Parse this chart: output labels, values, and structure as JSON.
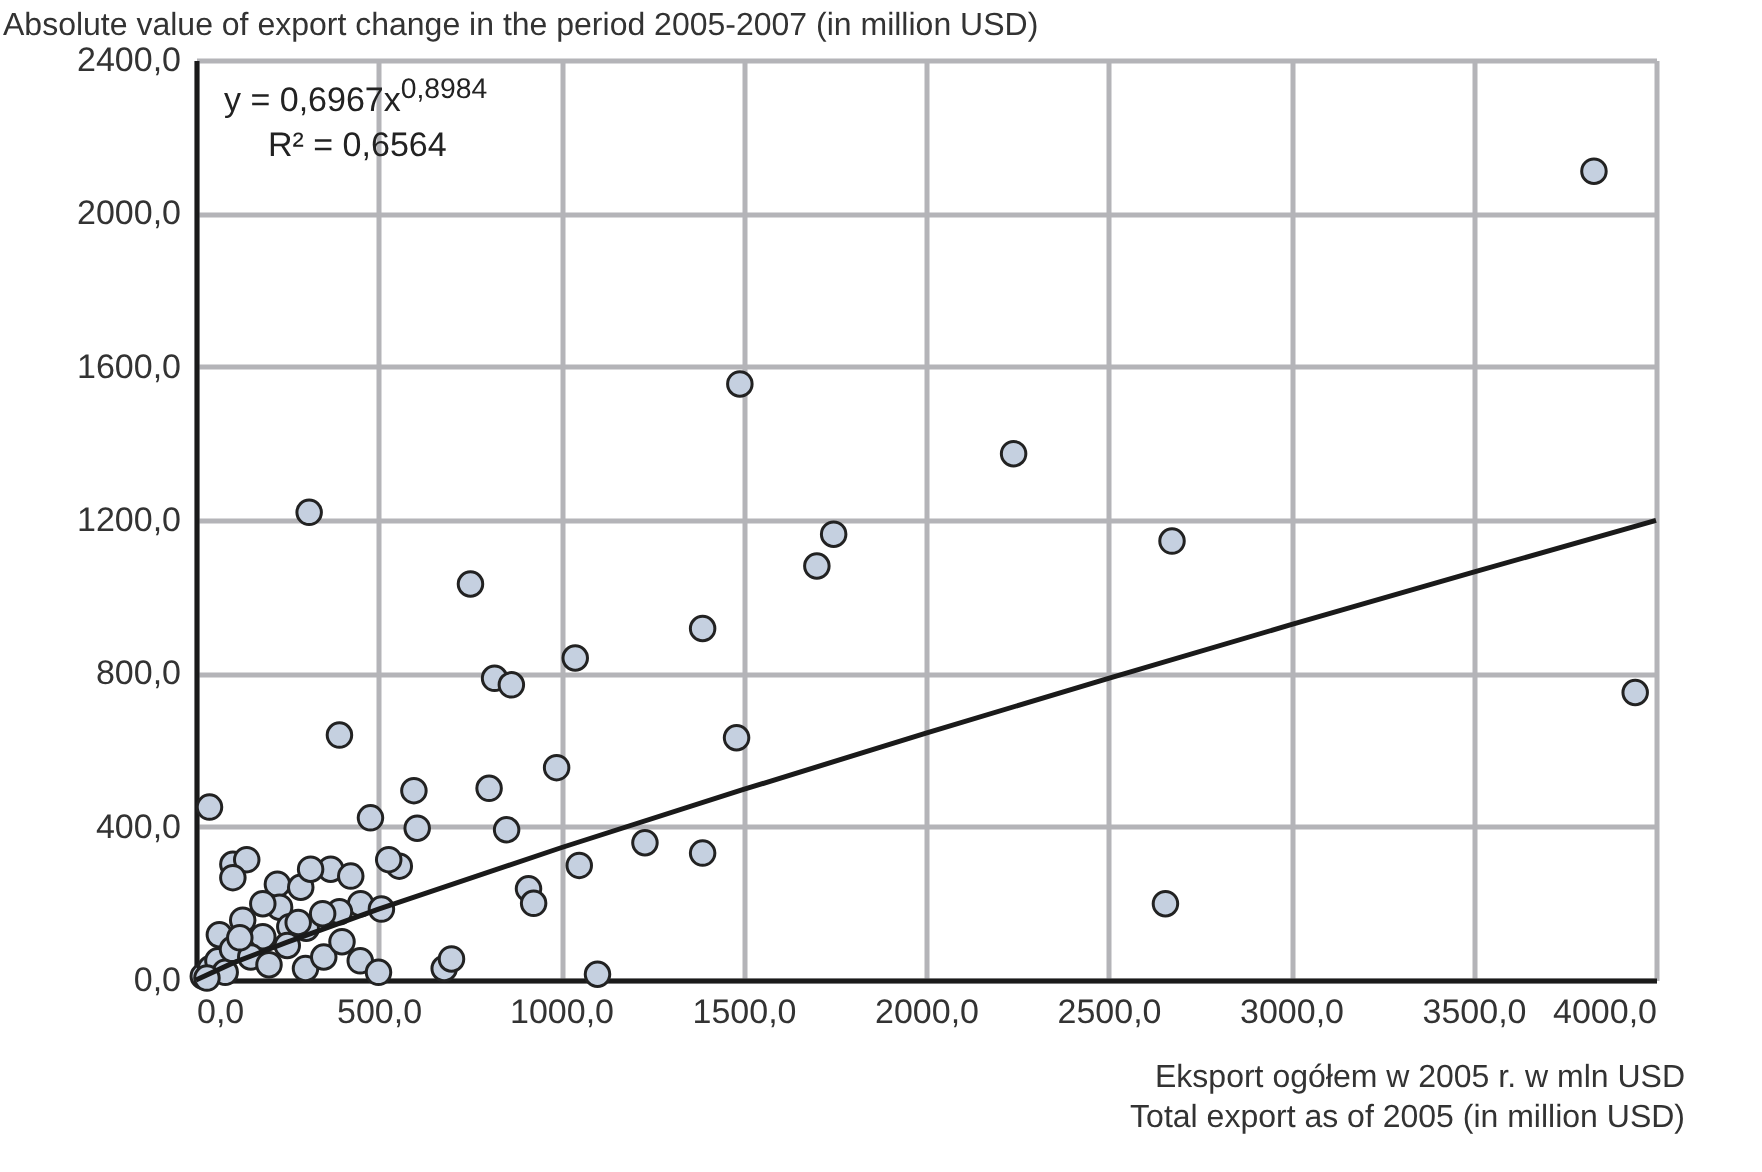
{
  "chart_data": {
    "type": "scatter",
    "ylabel": "Absolute value of export change in the period 2005-2007 (in million USD)",
    "xlabel": "Eksport ogółem w 2005 r. w mln USD\nTotal export as of 2005 (in million USD)",
    "xlim": [
      0,
      4000
    ],
    "ylim": [
      0,
      2400
    ],
    "xticks": [
      {
        "value": 0,
        "label": "0,0"
      },
      {
        "value": 500,
        "label": "500,0"
      },
      {
        "value": 1000,
        "label": "1000,0"
      },
      {
        "value": 1500,
        "label": "1500,0"
      },
      {
        "value": 2000,
        "label": "2000,0"
      },
      {
        "value": 2500,
        "label": "2500,0"
      },
      {
        "value": 3000,
        "label": "3000,0"
      },
      {
        "value": 3500,
        "label": "3500,0"
      },
      {
        "value": 4000,
        "label": "4000,0"
      }
    ],
    "yticks": [
      {
        "value": 0,
        "label": "0,0"
      },
      {
        "value": 400,
        "label": "400,0"
      },
      {
        "value": 800,
        "label": "800,0"
      },
      {
        "value": 1200,
        "label": "1200,0"
      },
      {
        "value": 1600,
        "label": "1600,0"
      },
      {
        "value": 2000,
        "label": "2000,0"
      },
      {
        "value": 2400,
        "label": "2400,0"
      }
    ],
    "grid": true,
    "annotations": [
      "y = 0,6967x$^{0,8984}$",
      "R² = 0,6564"
    ],
    "series": [
      {
        "color": "#c5d0e0",
        "marker": "circle",
        "x": [
          3830,
          3943,
          2240,
          1747,
          1701,
          2674,
          752,
          1388,
          1039,
          818,
          864,
          1481,
          988,
          597,
          803,
          606,
          851,
          557,
          1230,
          1388,
          1050,
          911,
          925,
          2656,
          393,
          37,
          478,
          528,
          101,
          139,
          101,
          223,
          287,
          369,
          424,
          314,
          451,
          508,
          393,
          229,
          183,
          128,
          257,
          302,
          347,
          64,
          183,
          310,
          1490,
          1100,
          680,
          700,
          20,
          40,
          60,
          80,
          100,
          150,
          200,
          250,
          300,
          350,
          400,
          450,
          500,
          120,
          280,
          30
        ],
        "values": [
          2110,
          750,
          1373,
          1163,
          1080,
          1145,
          1033,
          917,
          840,
          787,
          770,
          632,
          554,
          494,
          500,
          396,
          392,
          297,
          358,
          331,
          299,
          238,
          200,
          199,
          639,
          451,
          423,
          314,
          302,
          314,
          267,
          250,
          242,
          289,
          271,
          289,
          199,
          185,
          178,
          190,
          199,
          156,
          139,
          135,
          173,
          118,
          113,
          1220,
          1555,
          15,
          30,
          55,
          10,
          30,
          50,
          20,
          80,
          60,
          40,
          90,
          30,
          60,
          100,
          50,
          20,
          110,
          150,
          5
        ]
      },
      {
        "type": "line",
        "color": "#1a1a1a",
        "x": [
          0,
          100,
          250,
          500,
          1000,
          1500,
          2000,
          2500,
          3000,
          3500,
          4000
        ],
        "values": [
          0,
          44,
          99,
          185,
          345,
          497,
          644,
          787,
          927,
          1064,
          1199
        ]
      }
    ]
  }
}
